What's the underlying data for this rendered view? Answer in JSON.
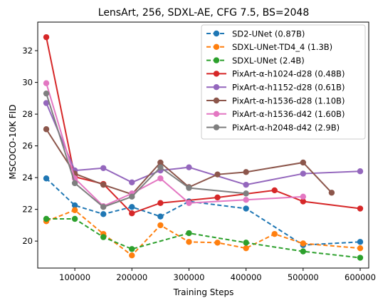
{
  "chart_data": {
    "type": "line",
    "title": "LensArt, 256, SDXL-AE, CFG 7.5, BS=2048",
    "xlabel": "Training Steps",
    "ylabel": "MSCOCO-10K FID",
    "xlim": [
      35000,
      615000
    ],
    "ylim": [
      18.3,
      33.8
    ],
    "xticks": [
      100000,
      200000,
      300000,
      400000,
      500000,
      600000
    ],
    "xtick_labels": [
      "100000",
      "200000",
      "300000",
      "400000",
      "500000",
      "600000"
    ],
    "yticks": [
      20,
      22,
      24,
      26,
      28,
      30,
      32
    ],
    "ytick_labels": [
      "20",
      "22",
      "24",
      "26",
      "28",
      "30",
      "32"
    ],
    "grid": false,
    "legend_position": "top-right",
    "series": [
      {
        "name": "SD2-UNet (0.87B)",
        "color": "#1f77b4",
        "linestyle": "dashed",
        "points": [
          [
            50000,
            23.95
          ],
          [
            100000,
            22.25
          ],
          [
            150000,
            21.7
          ],
          [
            200000,
            22.15
          ],
          [
            250000,
            21.55
          ],
          [
            300000,
            22.5
          ],
          [
            400000,
            22.05
          ],
          [
            500000,
            19.75
          ],
          [
            600000,
            19.95
          ]
        ]
      },
      {
        "name": "SDXL-UNet-TD4_4 (1.3B)",
        "color": "#ff7f0e",
        "linestyle": "dashed",
        "points": [
          [
            50000,
            21.25
          ],
          [
            100000,
            21.95
          ],
          [
            150000,
            20.45
          ],
          [
            200000,
            19.1
          ],
          [
            250000,
            21.0
          ],
          [
            300000,
            19.95
          ],
          [
            350000,
            19.9
          ],
          [
            400000,
            19.55
          ],
          [
            450000,
            20.45
          ],
          [
            500000,
            19.85
          ],
          [
            600000,
            19.55
          ]
        ]
      },
      {
        "name": "SDXL-UNet (2.4B)",
        "color": "#2ca02c",
        "linestyle": "dashed",
        "points": [
          [
            50000,
            21.4
          ],
          [
            100000,
            21.4
          ],
          [
            150000,
            20.25
          ],
          [
            200000,
            19.5
          ],
          [
            300000,
            20.5
          ],
          [
            400000,
            19.9
          ],
          [
            500000,
            19.35
          ],
          [
            600000,
            18.95
          ]
        ]
      },
      {
        "name": "PixArt-α-h1024-d28 (0.48B)",
        "color": "#d62728",
        "linestyle": "solid",
        "points": [
          [
            50000,
            32.85
          ],
          [
            100000,
            24.05
          ],
          [
            150000,
            23.6
          ],
          [
            200000,
            21.75
          ],
          [
            250000,
            22.4
          ],
          [
            350000,
            22.75
          ],
          [
            450000,
            23.2
          ],
          [
            500000,
            22.5
          ],
          [
            600000,
            22.05
          ]
        ]
      },
      {
        "name": "PixArt-α-h1152-d28 (0.61B)",
        "color": "#9467bd",
        "linestyle": "solid",
        "points": [
          [
            50000,
            28.7
          ],
          [
            100000,
            24.45
          ],
          [
            150000,
            24.6
          ],
          [
            200000,
            23.7
          ],
          [
            250000,
            24.45
          ],
          [
            300000,
            24.65
          ],
          [
            400000,
            23.55
          ],
          [
            500000,
            24.25
          ],
          [
            600000,
            24.4
          ]
        ]
      },
      {
        "name": "PixArt-α-h1536-d28 (1.10B)",
        "color": "#8c564b",
        "linestyle": "solid",
        "points": [
          [
            50000,
            27.05
          ],
          [
            100000,
            24.25
          ],
          [
            150000,
            23.55
          ],
          [
            200000,
            22.95
          ],
          [
            250000,
            24.95
          ],
          [
            300000,
            23.4
          ],
          [
            350000,
            24.2
          ],
          [
            400000,
            24.35
          ],
          [
            500000,
            24.95
          ],
          [
            550000,
            23.05
          ]
        ]
      },
      {
        "name": "PixArt-α-h1536-d42 (1.60B)",
        "color": "#e377c2",
        "linestyle": "solid",
        "points": [
          [
            50000,
            29.95
          ],
          [
            100000,
            23.95
          ],
          [
            150000,
            22.2
          ],
          [
            200000,
            23.0
          ],
          [
            250000,
            23.95
          ],
          [
            300000,
            22.4
          ],
          [
            400000,
            22.6
          ],
          [
            500000,
            22.8
          ]
        ]
      },
      {
        "name": "PixArt-α-h2048-d42 (2.9B)",
        "color": "#7f7f7f",
        "linestyle": "solid",
        "points": [
          [
            50000,
            29.3
          ],
          [
            100000,
            23.65
          ],
          [
            150000,
            22.15
          ],
          [
            200000,
            22.8
          ],
          [
            250000,
            24.65
          ],
          [
            300000,
            23.35
          ],
          [
            400000,
            23.0
          ]
        ]
      }
    ]
  }
}
